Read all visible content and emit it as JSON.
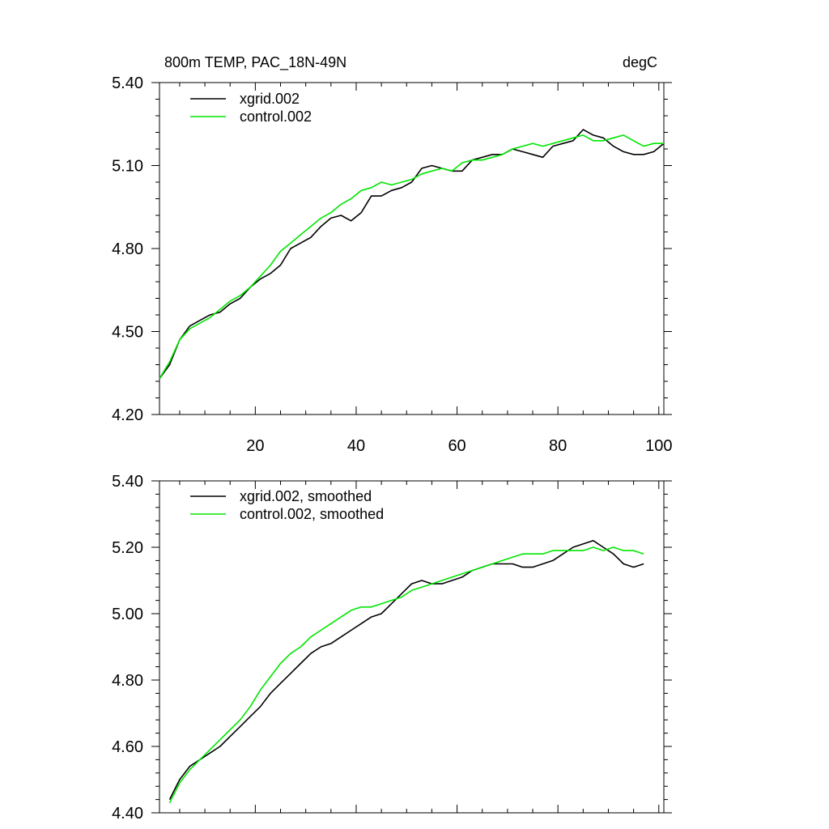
{
  "colors": {
    "xgrid": "#000000",
    "control": "#00e600"
  },
  "chart_data": [
    {
      "type": "line",
      "title": "800m TEMP, PAC_18N-49N",
      "units": "degC",
      "xlim": [
        1,
        101
      ],
      "ylim": [
        4.2,
        5.4
      ],
      "xticks": [
        20,
        40,
        60,
        80,
        100
      ],
      "xtick_labels": [
        "20",
        "40",
        "60",
        "80",
        "100"
      ],
      "yticks": [
        4.2,
        4.5,
        4.8,
        5.1,
        5.4
      ],
      "ytick_labels": [
        "4.20",
        "4.50",
        "4.80",
        "5.10",
        "5.40"
      ],
      "grid": false,
      "legend": "top-left",
      "series": [
        {
          "name": "xgrid.002",
          "color": "#000000",
          "x": [
            1,
            3,
            5,
            7,
            9,
            11,
            13,
            15,
            17,
            19,
            21,
            23,
            25,
            27,
            29,
            31,
            33,
            35,
            37,
            39,
            41,
            43,
            45,
            47,
            49,
            51,
            53,
            55,
            57,
            59,
            61,
            63,
            65,
            67,
            69,
            71,
            73,
            75,
            77,
            79,
            81,
            83,
            85,
            87,
            89,
            91,
            93,
            95,
            97,
            99,
            101
          ],
          "values": [
            4.33,
            4.38,
            4.47,
            4.52,
            4.54,
            4.56,
            4.57,
            4.6,
            4.62,
            4.66,
            4.69,
            4.71,
            4.74,
            4.8,
            4.82,
            4.84,
            4.88,
            4.91,
            4.92,
            4.9,
            4.93,
            4.99,
            4.99,
            5.01,
            5.02,
            5.04,
            5.09,
            5.1,
            5.09,
            5.08,
            5.08,
            5.12,
            5.13,
            5.14,
            5.14,
            5.16,
            5.15,
            5.14,
            5.13,
            5.17,
            5.18,
            5.19,
            5.23,
            5.21,
            5.2,
            5.17,
            5.15,
            5.14,
            5.14,
            5.15,
            5.18
          ]
        },
        {
          "name": "control.002",
          "color": "#00e600",
          "x": [
            1,
            3,
            5,
            7,
            9,
            11,
            13,
            15,
            17,
            19,
            21,
            23,
            25,
            27,
            29,
            31,
            33,
            35,
            37,
            39,
            41,
            43,
            45,
            47,
            49,
            51,
            53,
            55,
            57,
            59,
            61,
            63,
            65,
            67,
            69,
            71,
            73,
            75,
            77,
            79,
            81,
            83,
            85,
            87,
            89,
            91,
            93,
            95,
            97,
            99,
            101
          ],
          "values": [
            4.33,
            4.39,
            4.47,
            4.51,
            4.53,
            4.55,
            4.58,
            4.61,
            4.63,
            4.66,
            4.7,
            4.74,
            4.79,
            4.82,
            4.85,
            4.88,
            4.91,
            4.93,
            4.96,
            4.98,
            5.01,
            5.02,
            5.04,
            5.03,
            5.04,
            5.05,
            5.07,
            5.08,
            5.09,
            5.08,
            5.11,
            5.12,
            5.12,
            5.13,
            5.14,
            5.16,
            5.17,
            5.18,
            5.17,
            5.18,
            5.19,
            5.2,
            5.21,
            5.19,
            5.19,
            5.2,
            5.21,
            5.19,
            5.17,
            5.18,
            5.18
          ]
        }
      ]
    },
    {
      "type": "line",
      "title": "",
      "xlim": [
        1,
        101
      ],
      "ylim": [
        4.4,
        5.4
      ],
      "xticks": [
        20,
        40,
        60,
        80,
        100
      ],
      "yticks": [
        4.4,
        4.6,
        4.8,
        5.0,
        5.2,
        5.4
      ],
      "ytick_labels": [
        "4.40",
        "4.60",
        "4.80",
        "5.00",
        "5.20",
        "5.40"
      ],
      "grid": false,
      "legend": "top-left",
      "series": [
        {
          "name": "xgrid.002, smoothed",
          "color": "#000000",
          "x": [
            3,
            5,
            7,
            9,
            11,
            13,
            15,
            17,
            19,
            21,
            23,
            25,
            27,
            29,
            31,
            33,
            35,
            37,
            39,
            41,
            43,
            45,
            47,
            49,
            51,
            53,
            55,
            57,
            59,
            61,
            63,
            65,
            67,
            69,
            71,
            73,
            75,
            77,
            79,
            81,
            83,
            85,
            87,
            89,
            91,
            93,
            95,
            97
          ],
          "values": [
            4.44,
            4.5,
            4.54,
            4.56,
            4.58,
            4.6,
            4.63,
            4.66,
            4.69,
            4.72,
            4.76,
            4.79,
            4.82,
            4.85,
            4.88,
            4.9,
            4.91,
            4.93,
            4.95,
            4.97,
            4.99,
            5.0,
            5.03,
            5.06,
            5.09,
            5.1,
            5.09,
            5.09,
            5.1,
            5.11,
            5.13,
            5.14,
            5.15,
            5.15,
            5.15,
            5.14,
            5.14,
            5.15,
            5.16,
            5.18,
            5.2,
            5.21,
            5.22,
            5.2,
            5.18,
            5.15,
            5.14,
            5.15
          ]
        },
        {
          "name": "control.002, smoothed",
          "color": "#00e600",
          "x": [
            3,
            5,
            7,
            9,
            11,
            13,
            15,
            17,
            19,
            21,
            23,
            25,
            27,
            29,
            31,
            33,
            35,
            37,
            39,
            41,
            43,
            45,
            47,
            49,
            51,
            53,
            55,
            57,
            59,
            61,
            63,
            65,
            67,
            69,
            71,
            73,
            75,
            77,
            79,
            81,
            83,
            85,
            87,
            89,
            91,
            93,
            95,
            97
          ],
          "values": [
            4.43,
            4.49,
            4.53,
            4.56,
            4.59,
            4.62,
            4.65,
            4.68,
            4.72,
            4.77,
            4.81,
            4.85,
            4.88,
            4.9,
            4.93,
            4.95,
            4.97,
            4.99,
            5.01,
            5.02,
            5.02,
            5.03,
            5.04,
            5.05,
            5.07,
            5.08,
            5.09,
            5.1,
            5.11,
            5.12,
            5.13,
            5.14,
            5.15,
            5.16,
            5.17,
            5.18,
            5.18,
            5.18,
            5.19,
            5.19,
            5.19,
            5.19,
            5.2,
            5.19,
            5.2,
            5.19,
            5.19,
            5.18
          ]
        }
      ]
    }
  ]
}
